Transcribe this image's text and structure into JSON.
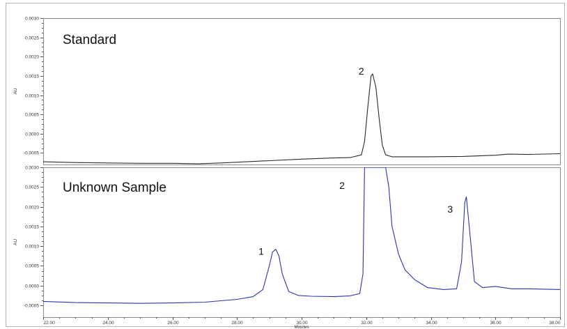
{
  "colors": {
    "standard_trace": "#2a2a2a",
    "sample_trace": "#2b35a8",
    "axes": "#555555",
    "frame": "#8a8a8a"
  },
  "chart_data": [
    {
      "type": "line",
      "panel_label": "Standard",
      "ylabel": "AU",
      "xlim": [
        22.0,
        38.0
      ],
      "ylim": [
        -0.0008,
        0.003
      ],
      "yticks": [
        "0.0030",
        "0.0025",
        "0.0020",
        "0.0015",
        "0.0010",
        "0.0005",
        "0.0000",
        "-0.0005"
      ],
      "ytick_values": [
        0.003,
        0.0025,
        0.002,
        0.0015,
        0.001,
        0.0005,
        0.0,
        -0.0005
      ],
      "series": [
        {
          "x": [
            22.0,
            23.0,
            24.0,
            25.0,
            26.0,
            26.8,
            27.5,
            28.0,
            29.0,
            30.0,
            31.0,
            31.5,
            31.85,
            31.95,
            32.05,
            32.15,
            32.2,
            32.3,
            32.4,
            32.5,
            32.6,
            32.8,
            33.5,
            34.0,
            35.0,
            36.0,
            36.4,
            37.0,
            38.0
          ],
          "y": [
            -0.00073,
            -0.00075,
            -0.00076,
            -0.00077,
            -0.00077,
            -0.00078,
            -0.00076,
            -0.00074,
            -0.0007,
            -0.00066,
            -0.00063,
            -0.00062,
            -0.00055,
            -0.0002,
            0.0007,
            0.0015,
            0.00155,
            0.0012,
            0.0004,
            -0.0003,
            -0.00055,
            -0.0006,
            -0.0006,
            -0.0006,
            -0.00059,
            -0.00056,
            -0.00053,
            -0.00054,
            -0.00052
          ]
        }
      ],
      "annotations": [
        {
          "text": "2",
          "x": 31.85,
          "y": 0.00153
        }
      ]
    },
    {
      "type": "line",
      "panel_label": "Unknown Sample",
      "ylabel": "AU",
      "xlabel": "Minutes",
      "xlim": [
        22.0,
        38.0
      ],
      "ylim": [
        -0.0008,
        0.003
      ],
      "xticks": [
        "22.00",
        "24.00",
        "26.00",
        "28.00",
        "30.00",
        "32.00",
        "34.00",
        "36.00",
        "38.00"
      ],
      "xtick_values": [
        22,
        24,
        26,
        28,
        30,
        32,
        34,
        36,
        38
      ],
      "yticks": [
        "0.0030",
        "0.0025",
        "0.0020",
        "0.0015",
        "0.0010",
        "0.0005",
        "0.0000",
        "-0.0005"
      ],
      "ytick_values": [
        0.003,
        0.0025,
        0.002,
        0.0015,
        0.001,
        0.0005,
        0.0,
        -0.0005
      ],
      "series": [
        {
          "x": [
            22.0,
            23.0,
            24.0,
            25.0,
            26.0,
            27.0,
            28.0,
            28.5,
            28.8,
            29.0,
            29.1,
            29.2,
            29.3,
            29.4,
            29.6,
            29.9,
            30.3,
            31.0,
            31.5,
            31.8,
            31.9,
            31.95,
            32.05,
            32.6,
            32.7,
            32.8,
            33.0,
            33.2,
            33.5,
            33.9,
            34.4,
            34.8,
            34.95,
            35.05,
            35.1,
            35.2,
            35.35,
            35.6,
            36.0,
            36.5,
            37.0,
            38.0
          ],
          "y": [
            -0.0004,
            -0.00043,
            -0.00044,
            -0.00045,
            -0.00044,
            -0.00042,
            -0.00035,
            -0.00028,
            -0.0001,
            0.0005,
            0.00085,
            0.00092,
            0.00075,
            0.0003,
            -0.00015,
            -0.00025,
            -0.00027,
            -0.00028,
            -0.00026,
            -0.0002,
            0.0003,
            0.003,
            0.003,
            0.003,
            0.0025,
            0.0015,
            0.0008,
            0.0004,
            0.00015,
            -5e-05,
            -0.0001,
            -8e-05,
            0.0006,
            0.0021,
            0.00225,
            0.0014,
            0.0001,
            -5e-05,
            -2e-05,
            -8e-05,
            -8e-05,
            -0.0001
          ]
        }
      ],
      "annotations": [
        {
          "text": "1",
          "x": 28.75,
          "y": 0.00078
        },
        {
          "text": "2",
          "x": 31.25,
          "y": 0.00245
        },
        {
          "text": "3",
          "x": 34.6,
          "y": 0.00185
        }
      ]
    }
  ]
}
